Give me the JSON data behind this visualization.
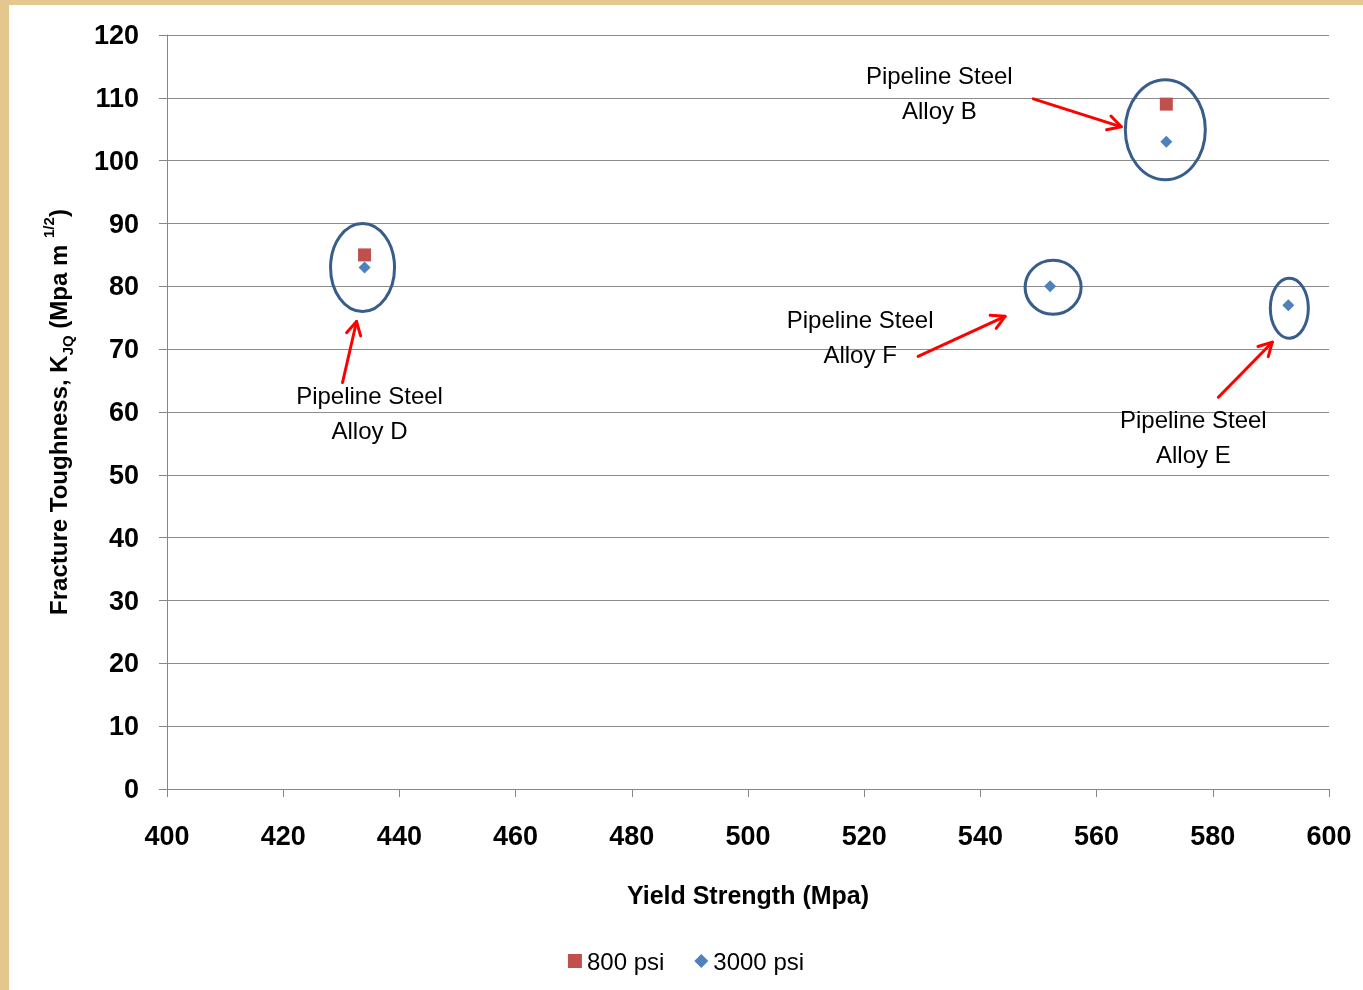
{
  "chart_data": {
    "type": "scatter",
    "xlabel": "Yield Strength (Mpa)",
    "ylabel": "Fracture Toughness, K$_{JQ}$ (Mpa m $^{1/2}$)",
    "xlim": [
      400,
      600
    ],
    "xticks": [
      400,
      420,
      440,
      460,
      480,
      500,
      520,
      540,
      560,
      580,
      600
    ],
    "ylim": [
      0,
      120
    ],
    "yticks": [
      0,
      10,
      20,
      30,
      40,
      50,
      60,
      70,
      80,
      90,
      100,
      110,
      120
    ],
    "grid": "y",
    "legend": "bottom",
    "series": [
      {
        "name": "800 psi",
        "color": "#c0504d",
        "marker": "square",
        "x": [
          434,
          572
        ],
        "values": [
          85,
          109
        ]
      },
      {
        "name": "3000 psi",
        "color": "#4f81bd",
        "marker": "diamond",
        "x": [
          434,
          552,
          572,
          593
        ],
        "values": [
          83,
          80,
          103,
          77
        ]
      }
    ],
    "annotations": [
      "Pipeline Steel\nAlloy D",
      "Pipeline Steel\nAlloy B",
      "Pipeline Steel\nAlloy F",
      "Pipeline Steel\nAlloy E"
    ]
  }
}
